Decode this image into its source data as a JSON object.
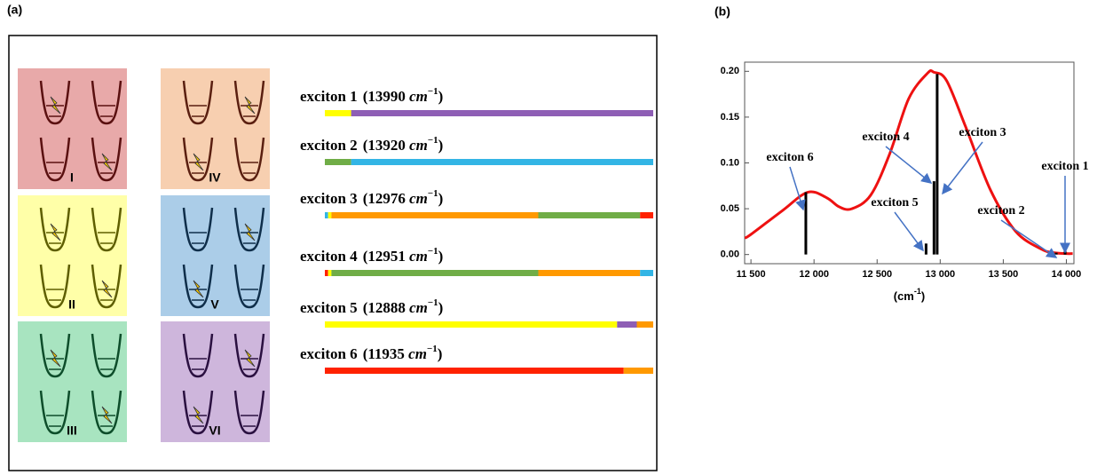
{
  "panel_a": {
    "label": "(a)",
    "boxes": [
      {
        "label": "I",
        "bg": "#e8a9a9",
        "ink": "#5a1010",
        "bolts": [
          0,
          3
        ]
      },
      {
        "label": "II",
        "bg": "#ffffa8",
        "ink": "#5e5e00",
        "bolts": [
          0,
          3
        ]
      },
      {
        "label": "III",
        "bg": "#a8e4c0",
        "ink": "#0d4d2a",
        "bolts": [
          0,
          3
        ]
      },
      {
        "label": "IV",
        "bg": "#f7cfb0",
        "ink": "#5a1f10",
        "bolts": [
          1,
          2
        ]
      },
      {
        "label": "V",
        "bg": "#abcde8",
        "ink": "#0f2e4a",
        "bolts": [
          1,
          2
        ]
      },
      {
        "label": "VI",
        "bg": "#ceb6dc",
        "ink": "#2a1040",
        "bolts": [
          1,
          2
        ]
      }
    ],
    "unit": "cm",
    "unit_exp": "−1",
    "close": ")",
    "excitons": [
      {
        "name": "exciton 1",
        "energy": "(13990 ",
        "segments": [
          {
            "color": "#ffff00",
            "value": 8
          },
          {
            "color": "#8e5eb5",
            "value": 92
          }
        ]
      },
      {
        "name": "exciton 2",
        "energy": "(13920 ",
        "segments": [
          {
            "color": "#70ad47",
            "value": 8
          },
          {
            "color": "#33b5e5",
            "value": 92
          }
        ]
      },
      {
        "name": "exciton 3",
        "energy": "(12976 ",
        "segments": [
          {
            "color": "#33b5e5",
            "value": 1
          },
          {
            "color": "#ffff00",
            "value": 1
          },
          {
            "color": "#ff9900",
            "value": 63
          },
          {
            "color": "#70ad47",
            "value": 31
          },
          {
            "color": "#ff2200",
            "value": 4
          }
        ]
      },
      {
        "name": "exciton 4",
        "energy": "(12951 ",
        "segments": [
          {
            "color": "#ff2200",
            "value": 1
          },
          {
            "color": "#ffff00",
            "value": 1
          },
          {
            "color": "#70ad47",
            "value": 63
          },
          {
            "color": "#ff9900",
            "value": 31
          },
          {
            "color": "#33b5e5",
            "value": 4
          }
        ]
      },
      {
        "name": "exciton 5",
        "energy": "(12888 ",
        "segments": [
          {
            "color": "#ffff00",
            "value": 89
          },
          {
            "color": "#8e5eb5",
            "value": 6
          },
          {
            "color": "#ff9900",
            "value": 5
          }
        ]
      },
      {
        "name": "exciton 6",
        "energy": "(11935 ",
        "segments": [
          {
            "color": "#ff2200",
            "value": 91
          },
          {
            "color": "#ff9900",
            "value": 9
          }
        ]
      }
    ]
  },
  "chart_data": {
    "type": "line",
    "panel_label": "(b)",
    "xlabel": [
      "(cm",
      "-1",
      ")"
    ],
    "x": [
      11450,
      11500,
      11750,
      11950,
      12100,
      12200,
      12300,
      12450,
      12600,
      12750,
      12900,
      12950,
      13050,
      13200,
      13400,
      13600,
      13800,
      13900,
      14000,
      14050
    ],
    "series": [
      {
        "color": "#ee1111",
        "values": [
          0.018,
          0.022,
          0.048,
          0.068,
          0.062,
          0.052,
          0.05,
          0.065,
          0.11,
          0.17,
          0.198,
          0.199,
          0.19,
          0.14,
          0.07,
          0.025,
          0.006,
          0.002,
          0.001,
          0.001
        ]
      }
    ],
    "sticks": {
      "color": "#000000",
      "x": [
        13990,
        13920,
        12976,
        12951,
        12888,
        11935
      ],
      "values": [
        0.004,
        0.002,
        0.197,
        0.08,
        0.012,
        0.068
      ]
    },
    "annotations": [
      "exciton 1",
      "exciton 2",
      "exciton 3",
      "exciton 4",
      "exciton 5",
      "exciton 6"
    ],
    "xlim": [
      11450,
      14060
    ],
    "ylim": [
      -0.01,
      0.21
    ],
    "xticks": [
      {
        "value": 11500,
        "label": "11 500"
      },
      {
        "value": 12000,
        "label": "12 000"
      },
      {
        "value": 12500,
        "label": "12 500"
      },
      {
        "value": 13000,
        "label": "13 000"
      },
      {
        "value": 13500,
        "label": "13 500"
      },
      {
        "value": 14000,
        "label": "14 000"
      }
    ],
    "yticks": [
      {
        "value": 0,
        "label": "0.00"
      },
      {
        "value": 0.05,
        "label": "0.05"
      },
      {
        "value": 0.1,
        "label": "0.10"
      },
      {
        "value": 0.15,
        "label": "0.15"
      },
      {
        "value": 0.2,
        "label": "0.20"
      }
    ]
  }
}
